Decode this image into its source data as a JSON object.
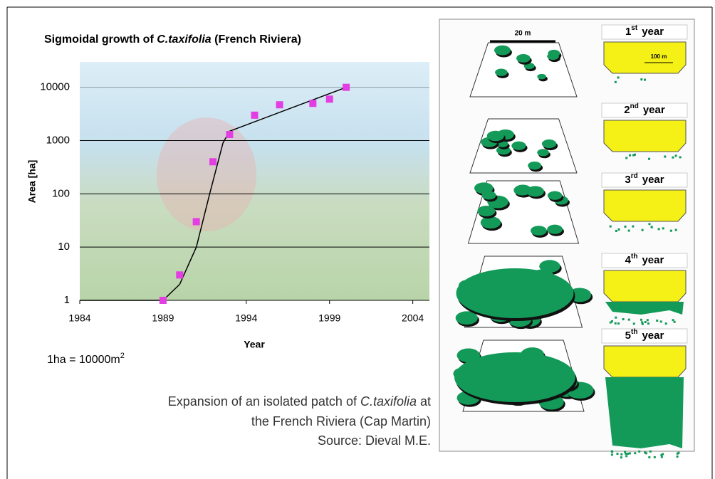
{
  "chart_data": {
    "type": "scatter",
    "title": [
      "Sigmoidal growth of ",
      "C.taxifolia",
      " (French Riviera)"
    ],
    "x_label": "Year",
    "y_label": "Area [ha]",
    "xlim": [
      1984,
      2005
    ],
    "xticks": [
      1984,
      1989,
      1994,
      1999,
      2004
    ],
    "ylim": [
      1,
      30000
    ],
    "yticks": [
      1,
      10,
      100,
      1000,
      10000
    ],
    "yscale": "log",
    "grid": true,
    "series": [
      {
        "type": "scatter",
        "color": "#e23ee2",
        "x": [
          1989,
          1990,
          1991,
          1992,
          1993,
          1994.5,
          1996,
          1998,
          1999,
          2000
        ],
        "values": [
          1,
          3,
          30,
          400,
          1300,
          3000,
          4700,
          5000,
          6000,
          10000
        ]
      },
      {
        "type": "line",
        "color": "#000000",
        "x": [
          1984,
          1989,
          1990,
          1991,
          1991.8,
          1992.6,
          1993,
          2000
        ],
        "values": [
          1,
          1,
          2,
          10,
          100,
          900,
          1500,
          10000
        ]
      }
    ]
  },
  "note": [
    "1ha = 10000m",
    "2"
  ],
  "caption": [
    [
      "Expansion of an isolated patch of ",
      "C.taxifolia",
      " at"
    ],
    "the French Riviera (Cap Martin)",
    "Source: Dieval M.E."
  ],
  "diagram": {
    "scale_small": "20 m",
    "scale_large": "100 m",
    "panels": [
      {
        "n": "1",
        "suffix": "st",
        "label": "year"
      },
      {
        "n": "2",
        "suffix": "nd",
        "label": "year"
      },
      {
        "n": "3",
        "suffix": "rd",
        "label": "year"
      },
      {
        "n": "4",
        "suffix": "th",
        "label": "year"
      },
      {
        "n": "5",
        "suffix": "th",
        "label": "year"
      }
    ]
  }
}
